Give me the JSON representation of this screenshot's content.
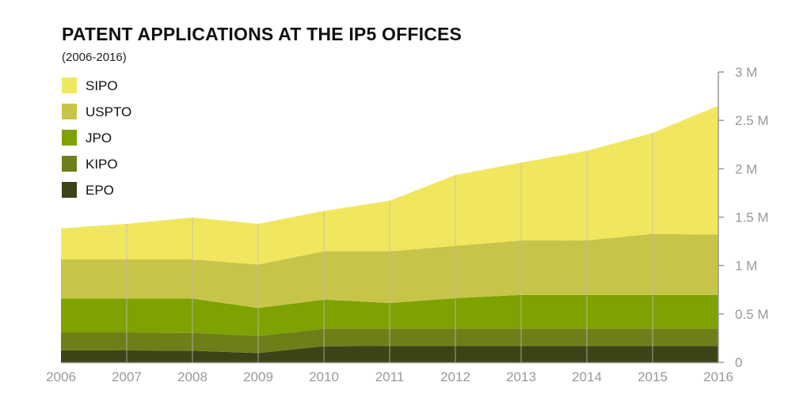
{
  "chart_data": {
    "type": "area",
    "stacked": true,
    "title": "PATENT APPLICATIONS AT THE IP5 OFFICES",
    "subtitle": "(2006-2016)",
    "xlabel": "",
    "ylabel": "",
    "x": [
      2006,
      2007,
      2008,
      2009,
      2010,
      2011,
      2012,
      2013,
      2014,
      2015,
      2016
    ],
    "ylim": [
      0,
      3000000
    ],
    "y_ticks": [
      0,
      500000,
      1000000,
      1500000,
      2000000,
      2500000,
      3000000
    ],
    "y_tick_labels": [
      "0",
      "0.5 M",
      "1 M",
      "1.5 M",
      "2 M",
      "2.5 M",
      "3 M"
    ],
    "y_axis_position": "right",
    "grid": "vertical",
    "legend_position": "top-left",
    "series": [
      {
        "name": "EPO",
        "color": "#3d4316",
        "values": [
          125000,
          123000,
          120000,
          95000,
          166000,
          169000,
          169000,
          169000,
          169000,
          169000,
          169000
        ]
      },
      {
        "name": "KIPO",
        "color": "#6e7f1a",
        "values": [
          182000,
          184000,
          185000,
          177000,
          180000,
          177000,
          177000,
          177000,
          177000,
          177000,
          177000
        ]
      },
      {
        "name": "JPO",
        "color": "#7ea200",
        "values": [
          352000,
          352000,
          354000,
          289000,
          302000,
          267000,
          316000,
          351000,
          351000,
          351000,
          351000
        ]
      },
      {
        "name": "USPTO",
        "color": "#c6c54a",
        "values": [
          404000,
          404000,
          404000,
          450000,
          499000,
          534000,
          542000,
          562000,
          563000,
          630000,
          623000
        ]
      },
      {
        "name": "SIPO",
        "color": "#f1e75e",
        "values": [
          321000,
          368000,
          433000,
          420000,
          417000,
          523000,
          731000,
          804000,
          926000,
          1044000,
          1332000
        ]
      }
    ]
  }
}
